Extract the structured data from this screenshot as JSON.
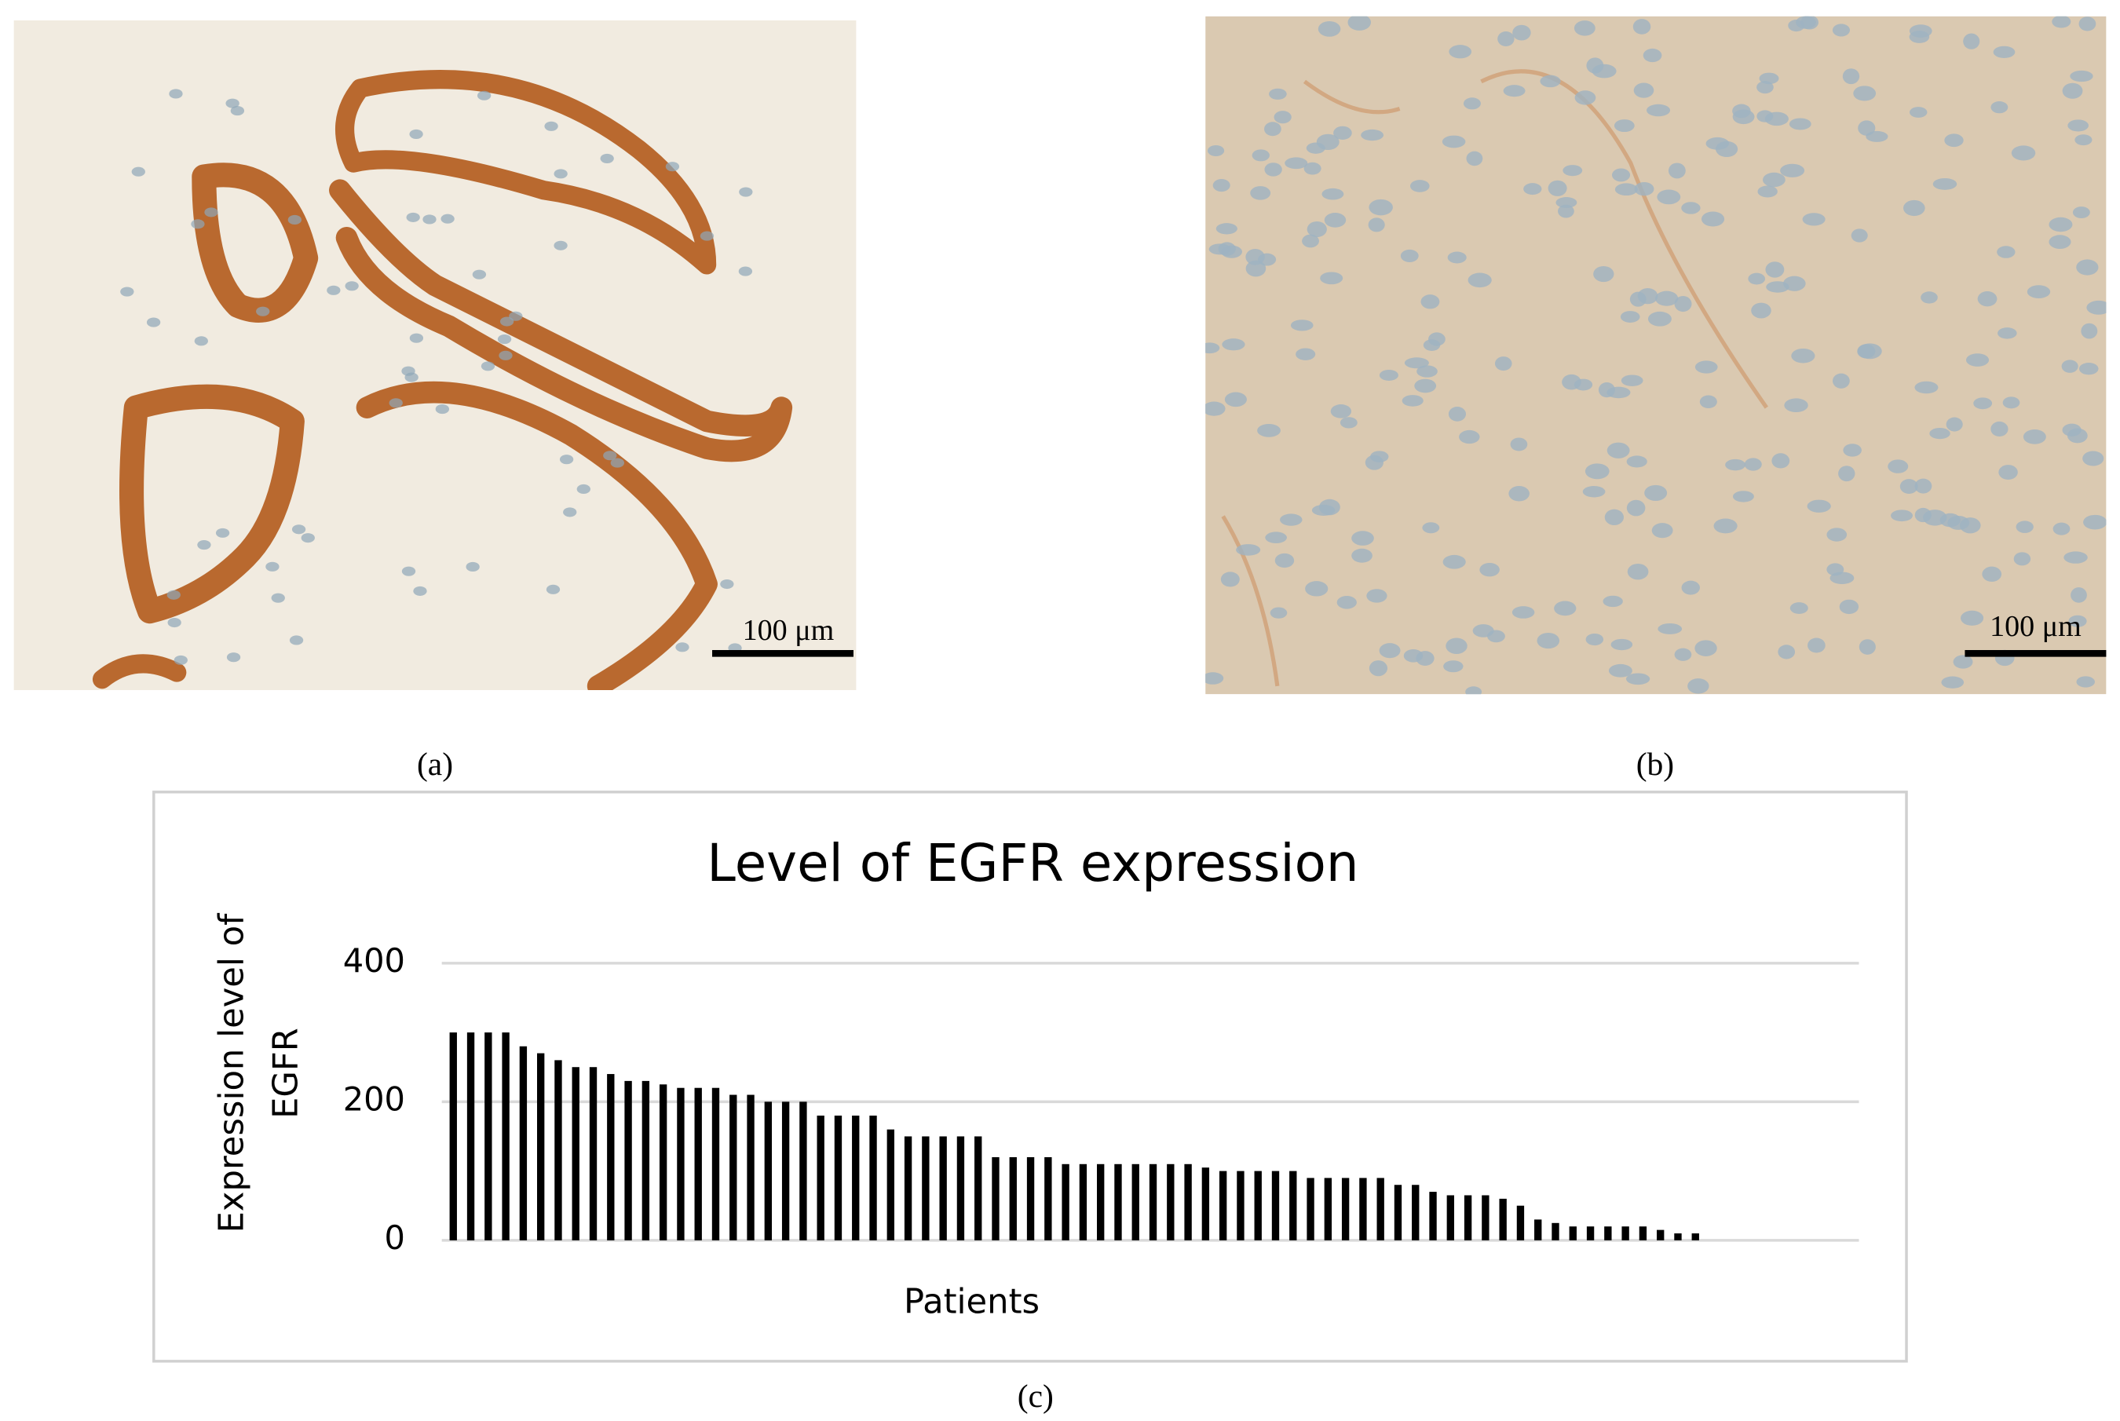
{
  "figure": {
    "panels": [
      {
        "label": "(a)",
        "scale_bar": "100 μm"
      },
      {
        "label": "(b)",
        "scale_bar": "100 μm"
      }
    ],
    "chart_label": "(c)"
  },
  "chart_data": {
    "type": "bar",
    "title": "Level of EGFR expression",
    "x_label": "Patients",
    "y_label": [
      "Expression level of",
      "EGFR"
    ],
    "categories": [
      null,
      null,
      null,
      null,
      null,
      null,
      null,
      null,
      null,
      null,
      null,
      null,
      null,
      null,
      null,
      null,
      null,
      null,
      null,
      null,
      null,
      null,
      null,
      null,
      null,
      null,
      null,
      null,
      null,
      null,
      null,
      null,
      null,
      null,
      null,
      null,
      null,
      null,
      null,
      null,
      null,
      null,
      null,
      null,
      null,
      null,
      null,
      null,
      null,
      null,
      null,
      null,
      null,
      null,
      null,
      null,
      null,
      null,
      null,
      null,
      null,
      null,
      null,
      null,
      null,
      null,
      null,
      null,
      null,
      null,
      null,
      null,
      null,
      null,
      null,
      null,
      null,
      null,
      null,
      null,
      null
    ],
    "values": [
      300,
      300,
      300,
      300,
      280,
      270,
      260,
      250,
      250,
      240,
      230,
      230,
      225,
      220,
      220,
      220,
      210,
      210,
      200,
      200,
      200,
      180,
      180,
      180,
      180,
      160,
      150,
      150,
      150,
      150,
      150,
      120,
      120,
      120,
      120,
      110,
      110,
      110,
      110,
      110,
      110,
      110,
      110,
      105,
      100,
      100,
      100,
      100,
      100,
      90,
      90,
      90,
      90,
      90,
      80,
      80,
      70,
      65,
      65,
      65,
      60,
      50,
      30,
      25,
      20,
      20,
      20,
      20,
      20,
      15,
      10,
      10,
      0,
      0,
      0,
      0,
      0,
      0,
      0,
      0,
      0
    ],
    "color": "#000000",
    "ylim": [
      0,
      400
    ],
    "yticks": [
      0,
      200,
      400
    ],
    "grid": true
  }
}
